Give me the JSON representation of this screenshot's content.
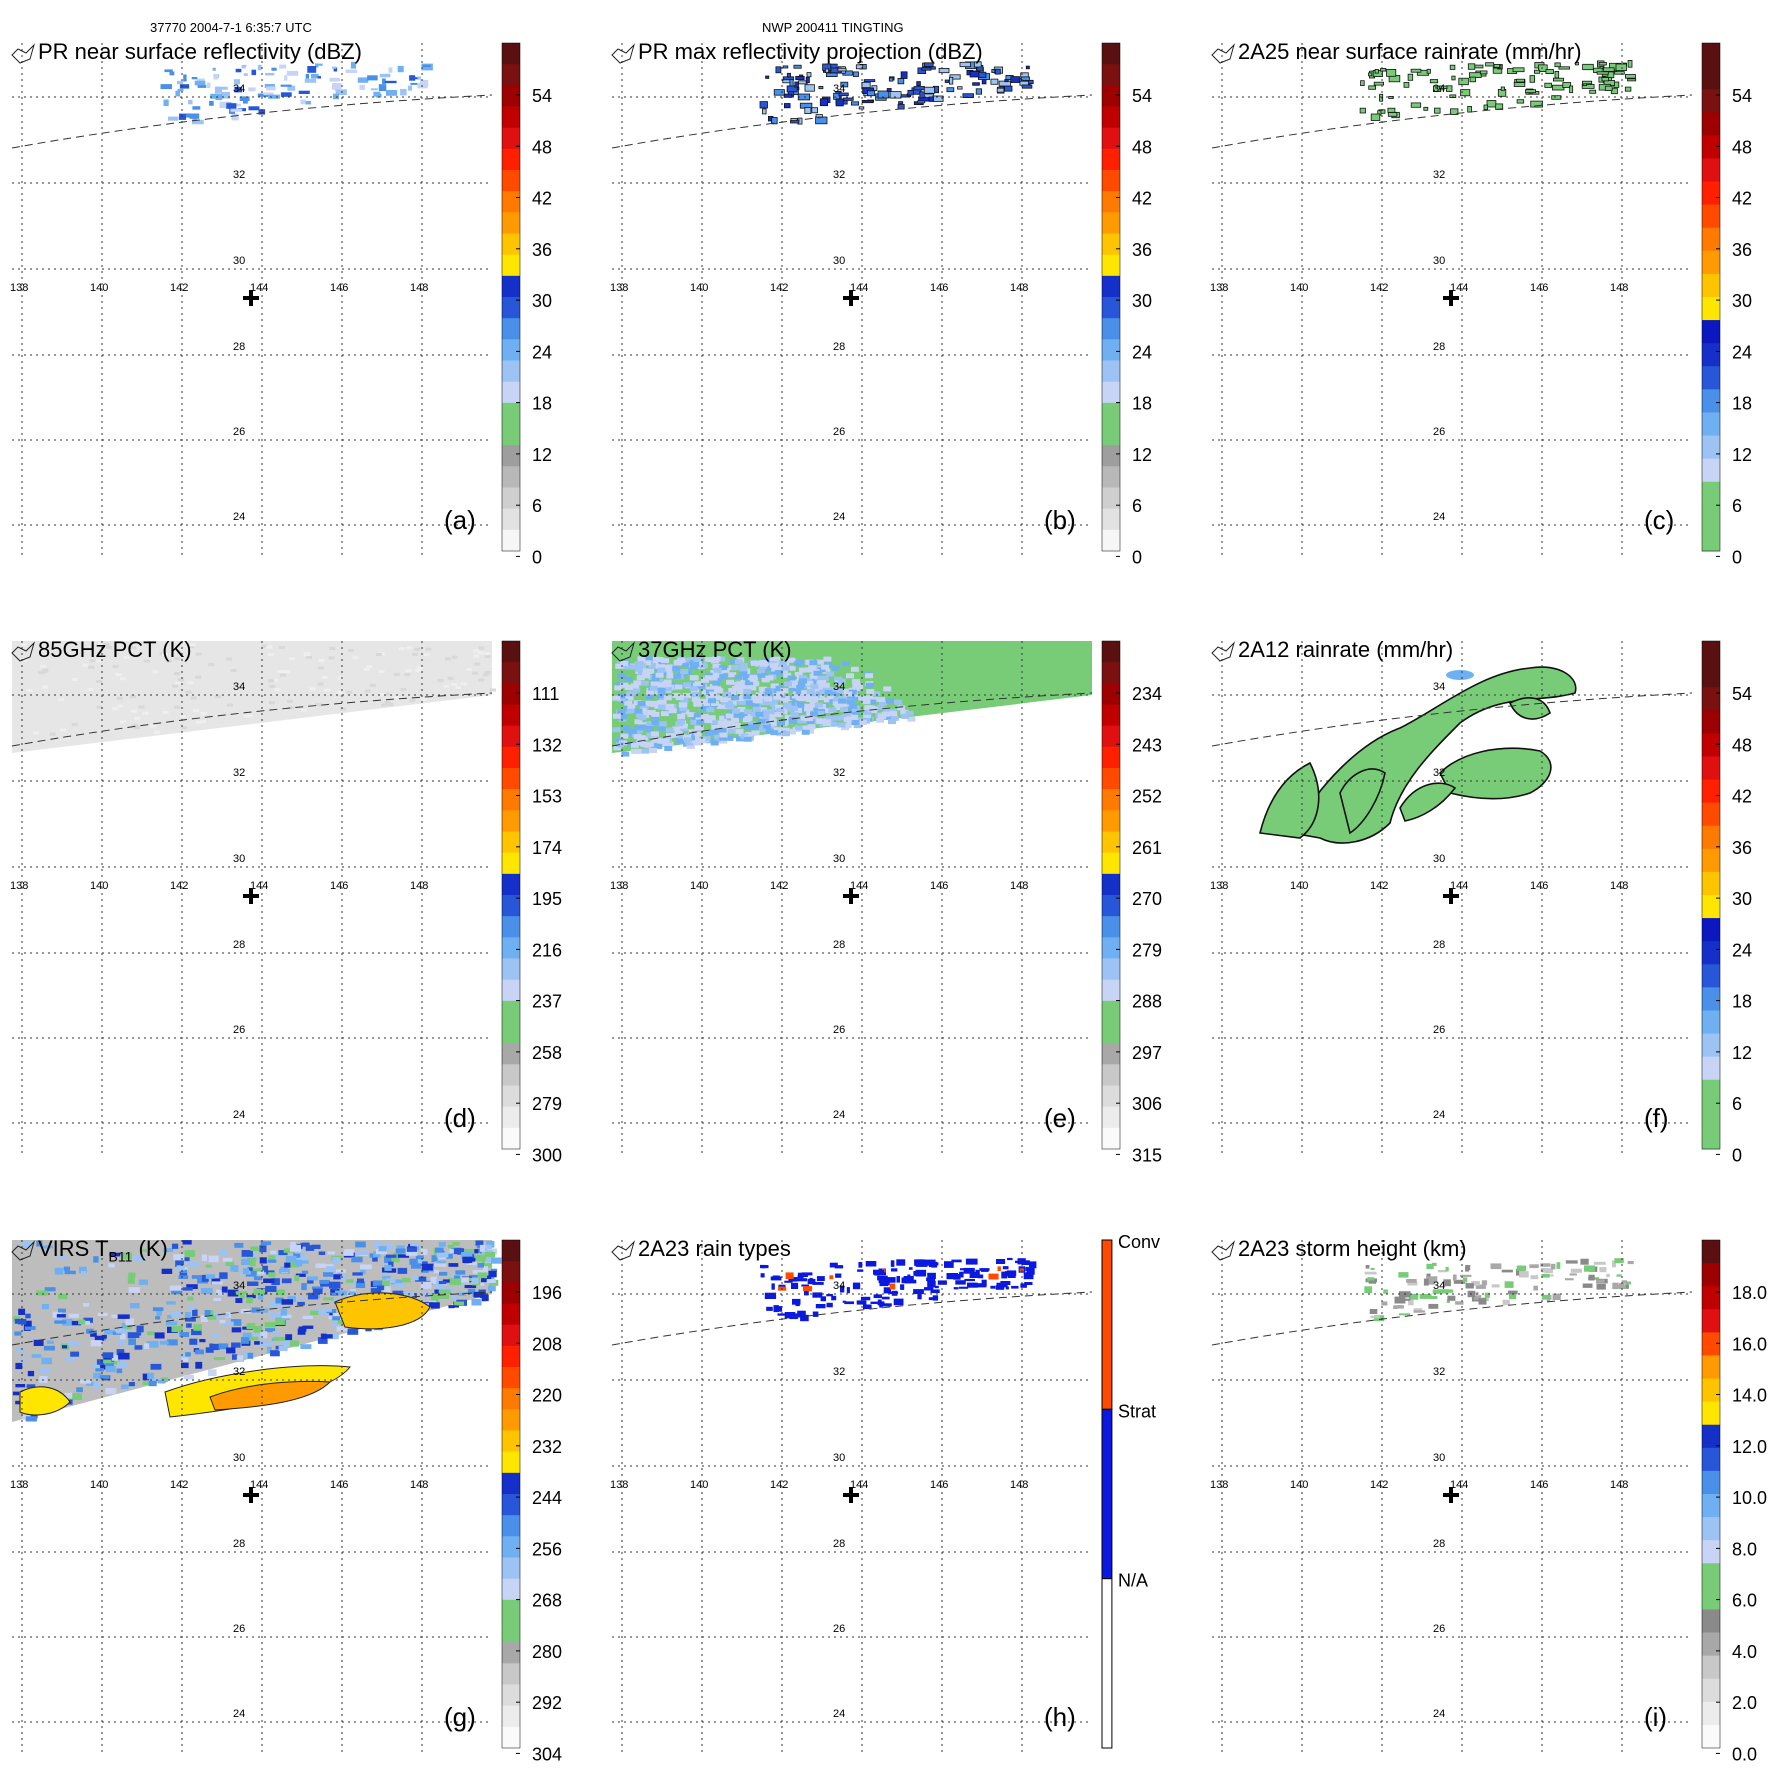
{
  "header": {
    "left": "37770 2004-7-1 6:35:7 UTC",
    "center": "NWP 200411 TINGTING"
  },
  "map": {
    "lon_ticks": [
      "138",
      "140",
      "142",
      "144",
      "146",
      "148"
    ],
    "lat_ticks": [
      "34",
      "32",
      "30",
      "28",
      "26",
      "24"
    ]
  },
  "chart_data": [
    {
      "id": "a",
      "type": "heatmap",
      "title": "PR near surface reflectivity (dBZ)",
      "panel_label": "(a)",
      "colorbar_ticks": [
        "54",
        "48",
        "42",
        "36",
        "30",
        "24",
        "18",
        "12",
        "6",
        "0"
      ],
      "colorbar_range": [
        0,
        60
      ],
      "colorbar_scheme": "dbz",
      "field": "pr_surface"
    },
    {
      "id": "b",
      "type": "heatmap",
      "title": "PR max reflectivity projection (dBZ)",
      "panel_label": "(b)",
      "colorbar_ticks": [
        "54",
        "48",
        "42",
        "36",
        "30",
        "24",
        "18",
        "12",
        "6",
        "0"
      ],
      "colorbar_range": [
        0,
        60
      ],
      "colorbar_scheme": "dbz",
      "field": "pr_max"
    },
    {
      "id": "c",
      "type": "heatmap",
      "title": "2A25 near surface rainrate (mm/hr)",
      "panel_label": "(c)",
      "colorbar_ticks": [
        "54",
        "48",
        "42",
        "36",
        "30",
        "24",
        "18",
        "12",
        "6",
        "0"
      ],
      "colorbar_range": [
        0,
        60
      ],
      "colorbar_scheme": "rain",
      "field": "rain_2a25"
    },
    {
      "id": "d",
      "type": "heatmap",
      "title": "85GHz PCT (K)",
      "panel_label": "(d)",
      "colorbar_ticks": [
        "111",
        "132",
        "153",
        "174",
        "195",
        "216",
        "237",
        "258",
        "279",
        "300"
      ],
      "colorbar_range": [
        90,
        300
      ],
      "colorbar_scheme": "pct",
      "field": "pct85"
    },
    {
      "id": "e",
      "type": "heatmap",
      "title": "37GHz PCT (K)",
      "panel_label": "(e)",
      "colorbar_ticks": [
        "234",
        "243",
        "252",
        "261",
        "270",
        "279",
        "288",
        "297",
        "306",
        "315"
      ],
      "colorbar_range": [
        225,
        315
      ],
      "colorbar_scheme": "pct",
      "field": "pct37"
    },
    {
      "id": "f",
      "type": "heatmap",
      "title": "2A12 rainrate (mm/hr)",
      "panel_label": "(f)",
      "colorbar_ticks": [
        "54",
        "48",
        "42",
        "36",
        "30",
        "24",
        "18",
        "12",
        "6",
        "0"
      ],
      "colorbar_range": [
        0,
        60
      ],
      "colorbar_scheme": "rain",
      "field": "rain_2a12"
    },
    {
      "id": "g",
      "type": "heatmap",
      "title_main": "VIRS T",
      "title_sub": "B11",
      "title_unit": " (K)",
      "panel_label": "(g)",
      "colorbar_ticks": [
        "196",
        "208",
        "220",
        "232",
        "244",
        "256",
        "268",
        "280",
        "292",
        "304"
      ],
      "colorbar_range": [
        184,
        304
      ],
      "colorbar_scheme": "pct",
      "field": "virs"
    },
    {
      "id": "h",
      "type": "heatmap",
      "title": "2A23 rain types",
      "panel_label": "(h)",
      "colorbar_ticks": [
        "Conv",
        "Strat",
        "N/A"
      ],
      "colorbar_scheme": "types",
      "field": "rain_types"
    },
    {
      "id": "i",
      "type": "heatmap",
      "title": "2A23 storm height (km)",
      "panel_label": "(i)",
      "colorbar_ticks": [
        "18.0",
        "16.0",
        "14.0",
        "12.0",
        "10.0",
        "8.0",
        "6.0",
        "4.0",
        "2.0",
        "0.0"
      ],
      "colorbar_range": [
        0,
        20
      ],
      "colorbar_scheme": "height",
      "field": "storm_height"
    }
  ],
  "colors": {
    "dbz": [
      "#f6f6f6",
      "#e2e2e2",
      "#cfcfcf",
      "#b8b8b8",
      "#9e9e9e",
      "#78cc78",
      "#78cc78",
      "#c7d4f5",
      "#9cc3f4",
      "#6fb0f3",
      "#4a90e8",
      "#2757d8",
      "#1530c8",
      "#ffe600",
      "#ffc400",
      "#ff9a00",
      "#ff7a00",
      "#ff4a00",
      "#ff2000",
      "#e01010",
      "#c00000",
      "#9c0000",
      "#7a1010",
      "#5a1010"
    ],
    "rain": [
      "#78cc78",
      "#78cc78",
      "#78cc78",
      "#c7d4f5",
      "#9cc3f4",
      "#6fb0f3",
      "#4a90e8",
      "#2757d8",
      "#1530c8",
      "#0b18c0",
      "#ffe600",
      "#ffc400",
      "#ff9a00",
      "#ff7a00",
      "#ff4a00",
      "#ff2000",
      "#e01010",
      "#c00000",
      "#9c0000",
      "#7a1010",
      "#5a1010",
      "#5a1010"
    ],
    "pct": [
      "#fafafa",
      "#ececec",
      "#dcdcdc",
      "#c8c8c8",
      "#a8a8a8",
      "#78cc78",
      "#78cc78",
      "#c7d4f5",
      "#9cc3f4",
      "#6fb0f3",
      "#4a90e8",
      "#2757d8",
      "#1530c8",
      "#ffe600",
      "#ffc400",
      "#ff9a00",
      "#ff7a00",
      "#ff4a00",
      "#ff2000",
      "#e01010",
      "#c00000",
      "#9c0000",
      "#7a1010",
      "#5a1010"
    ],
    "height": [
      "#fafafa",
      "#ececec",
      "#dcdcdc",
      "#c8c8c8",
      "#a8a8a8",
      "#8a8a8a",
      "#78cc78",
      "#78cc78",
      "#c7d4f5",
      "#9cc3f4",
      "#6fb0f3",
      "#4a90e8",
      "#2757d8",
      "#1530c8",
      "#ffe600",
      "#ffc400",
      "#ff9a00",
      "#ff4a00",
      "#e01010",
      "#c00000",
      "#9c0000",
      "#5a1010"
    ],
    "types": {
      "conv": "#ff4a00",
      "strat": "#0b18e0",
      "na": "#ffffff"
    }
  }
}
